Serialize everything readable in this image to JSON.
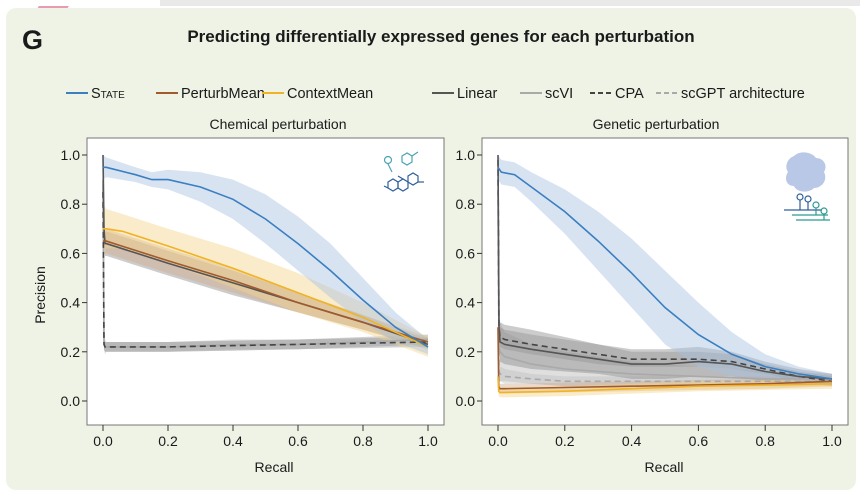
{
  "figure": {
    "panel_letter": "G",
    "title": "Predicting differentially expressed genes for each perturbation"
  },
  "legend": [
    {
      "label": "STATE",
      "color": "#3a7fc0",
      "dash": "solid"
    },
    {
      "label": "PerturbMean",
      "color": "#a05a2c",
      "dash": "solid"
    },
    {
      "label": "ContextMean",
      "color": "#f0b323",
      "dash": "solid"
    },
    {
      "label": "Linear",
      "color": "#555555",
      "dash": "solid"
    },
    {
      "label": "scVI",
      "color": "#a9a9a9",
      "dash": "solid"
    },
    {
      "label": "CPA",
      "color": "#444444",
      "dash": "dashed"
    },
    {
      "label": "scGPT architecture",
      "color": "#a9a9a9",
      "dash": "dashed"
    }
  ],
  "chart_data": [
    {
      "type": "line",
      "title": "Chemical perturbation",
      "xlabel": "Recall",
      "ylabel": "Precision",
      "xlim": [
        0,
        1
      ],
      "ylim": [
        0,
        1
      ],
      "xticks": [
        "0.0",
        "0.2",
        "0.4",
        "0.6",
        "0.8",
        "1.0"
      ],
      "yticks": [
        "0.0",
        "0.2",
        "0.4",
        "0.6",
        "0.8",
        "1.0"
      ],
      "icon": "molecule-icon",
      "series": [
        {
          "name": "STATE",
          "x": [
            0,
            0.01,
            0.1,
            0.15,
            0.2,
            0.3,
            0.4,
            0.5,
            0.6,
            0.7,
            0.8,
            0.9,
            1.0
          ],
          "y": [
            0.95,
            0.95,
            0.92,
            0.9,
            0.9,
            0.87,
            0.82,
            0.74,
            0.64,
            0.53,
            0.41,
            0.3,
            0.22
          ],
          "band": [
            0.05,
            0.04,
            0.03,
            0.03,
            0.04,
            0.06,
            0.08,
            0.1,
            0.11,
            0.11,
            0.09,
            0.06,
            0.03
          ]
        },
        {
          "name": "PerturbMean",
          "x": [
            0,
            0.01,
            0.2,
            0.4,
            0.6,
            0.8,
            1.0
          ],
          "y": [
            0.65,
            0.65,
            0.57,
            0.49,
            0.4,
            0.32,
            0.24
          ],
          "band": [
            0.06,
            0.05,
            0.05,
            0.05,
            0.04,
            0.03,
            0.02
          ]
        },
        {
          "name": "ContextMean",
          "x": [
            0,
            0.01,
            0.06,
            0.2,
            0.4,
            0.6,
            0.8,
            1.0
          ],
          "y": [
            0.7,
            0.7,
            0.69,
            0.63,
            0.54,
            0.44,
            0.34,
            0.22
          ],
          "band": [
            0.1,
            0.08,
            0.07,
            0.07,
            0.08,
            0.08,
            0.06,
            0.04
          ]
        },
        {
          "name": "Linear",
          "x": [
            0,
            0.003,
            0.006,
            0.01,
            0.2,
            0.4,
            0.6,
            0.8,
            1.0
          ],
          "y": [
            1.0,
            0.7,
            0.64,
            0.64,
            0.56,
            0.48,
            0.4,
            0.32,
            0.23
          ],
          "band": [
            0,
            0.04,
            0.05,
            0.05,
            0.05,
            0.05,
            0.04,
            0.03,
            0.02
          ]
        },
        {
          "name": "scVI",
          "x": [
            0,
            0.003,
            0.006,
            0.01,
            0.2,
            0.4,
            0.6,
            0.8,
            1.0
          ],
          "y": [
            0.9,
            0.24,
            0.22,
            0.22,
            0.22,
            0.23,
            0.23,
            0.24,
            0.25
          ],
          "band": [
            0,
            0.03,
            0.03,
            0.02,
            0.02,
            0.02,
            0.02,
            0.02,
            0.02
          ]
        },
        {
          "name": "CPA",
          "x": [
            0,
            0.003,
            0.006,
            0.01,
            0.2,
            0.4,
            0.6,
            0.8,
            1.0
          ],
          "y": [
            0.85,
            0.23,
            0.22,
            0.22,
            0.22,
            0.225,
            0.23,
            0.235,
            0.24
          ],
          "band": [
            0,
            0.02,
            0.02,
            0.02,
            0.02,
            0.02,
            0.02,
            0.02,
            0.02
          ]
        },
        {
          "name": "scGPT architecture",
          "x": [
            0,
            0.003,
            0.006,
            0.01,
            0.2,
            0.4,
            0.6,
            0.8,
            1.0
          ],
          "y": [
            0.88,
            0.23,
            0.22,
            0.22,
            0.22,
            0.225,
            0.23,
            0.24,
            0.25
          ],
          "band": [
            0,
            0.02,
            0.02,
            0.02,
            0.02,
            0.02,
            0.02,
            0.02,
            0.02
          ]
        }
      ]
    },
    {
      "type": "line",
      "title": "Genetic perturbation",
      "xlabel": "Recall",
      "ylabel": "",
      "xlim": [
        0,
        1
      ],
      "ylim": [
        0,
        1
      ],
      "xticks": [
        "0.0",
        "0.2",
        "0.4",
        "0.6",
        "0.8",
        "1.0"
      ],
      "yticks": [
        "0.0",
        "0.2",
        "0.4",
        "0.6",
        "0.8",
        "1.0"
      ],
      "icon": "gene-perturbation-icon",
      "series": [
        {
          "name": "STATE",
          "x": [
            0,
            0.01,
            0.05,
            0.1,
            0.2,
            0.3,
            0.4,
            0.5,
            0.6,
            0.7,
            0.8,
            0.9,
            1.0
          ],
          "y": [
            0.95,
            0.93,
            0.92,
            0.87,
            0.77,
            0.65,
            0.52,
            0.38,
            0.27,
            0.19,
            0.14,
            0.11,
            0.09
          ],
          "band": [
            0.05,
            0.05,
            0.05,
            0.06,
            0.09,
            0.12,
            0.14,
            0.15,
            0.13,
            0.09,
            0.05,
            0.03,
            0.02
          ]
        },
        {
          "name": "PerturbMean",
          "x": [
            0,
            0.002,
            0.005,
            0.02,
            0.2,
            0.4,
            0.6,
            0.8,
            1.0
          ],
          "y": [
            0.3,
            0.06,
            0.05,
            0.05,
            0.055,
            0.06,
            0.065,
            0.07,
            0.08
          ],
          "band": [
            0,
            0.02,
            0.02,
            0.02,
            0.02,
            0.02,
            0.02,
            0.02,
            0.02
          ]
        },
        {
          "name": "ContextMean",
          "x": [
            0,
            0.002,
            0.005,
            0.02,
            0.2,
            0.4,
            0.6,
            0.8,
            1.0
          ],
          "y": [
            0.1,
            0.04,
            0.035,
            0.035,
            0.04,
            0.05,
            0.06,
            0.065,
            0.07
          ],
          "band": [
            0,
            0.02,
            0.02,
            0.02,
            0.02,
            0.02,
            0.02,
            0.02,
            0.02
          ]
        },
        {
          "name": "Linear",
          "x": [
            0,
            0.003,
            0.006,
            0.02,
            0.1,
            0.2,
            0.3,
            0.4,
            0.5,
            0.6,
            0.7,
            0.8,
            0.9,
            1.0
          ],
          "y": [
            1.0,
            0.3,
            0.24,
            0.23,
            0.21,
            0.19,
            0.17,
            0.15,
            0.15,
            0.16,
            0.15,
            0.12,
            0.1,
            0.09
          ],
          "band": [
            0,
            0.08,
            0.08,
            0.08,
            0.08,
            0.07,
            0.06,
            0.06,
            0.06,
            0.06,
            0.05,
            0.04,
            0.03,
            0.02
          ]
        },
        {
          "name": "scVI",
          "x": [
            0,
            0.003,
            0.006,
            0.02,
            0.1,
            0.2,
            0.4,
            0.6,
            0.8,
            1.0
          ],
          "y": [
            0.85,
            0.22,
            0.2,
            0.18,
            0.15,
            0.13,
            0.11,
            0.1,
            0.09,
            0.09
          ],
          "band": [
            0,
            0.15,
            0.12,
            0.1,
            0.08,
            0.07,
            0.05,
            0.04,
            0.03,
            0.02
          ]
        },
        {
          "name": "CPA",
          "x": [
            0,
            0.003,
            0.006,
            0.02,
            0.1,
            0.2,
            0.3,
            0.4,
            0.5,
            0.6,
            0.7,
            0.8,
            0.9,
            1.0
          ],
          "y": [
            0.98,
            0.3,
            0.26,
            0.25,
            0.23,
            0.21,
            0.19,
            0.17,
            0.17,
            0.17,
            0.16,
            0.13,
            0.1,
            0.08
          ],
          "band": [
            0,
            0.04,
            0.04,
            0.04,
            0.04,
            0.04,
            0.04,
            0.03,
            0.03,
            0.03,
            0.03,
            0.02,
            0.02,
            0.02
          ]
        },
        {
          "name": "scGPT architecture",
          "x": [
            0,
            0.003,
            0.006,
            0.02,
            0.1,
            0.2,
            0.4,
            0.6,
            0.8,
            1.0
          ],
          "y": [
            0.9,
            0.12,
            0.11,
            0.1,
            0.09,
            0.08,
            0.08,
            0.08,
            0.08,
            0.08
          ],
          "band": [
            0,
            0.03,
            0.03,
            0.03,
            0.02,
            0.02,
            0.02,
            0.02,
            0.02,
            0.02
          ]
        }
      ]
    }
  ]
}
